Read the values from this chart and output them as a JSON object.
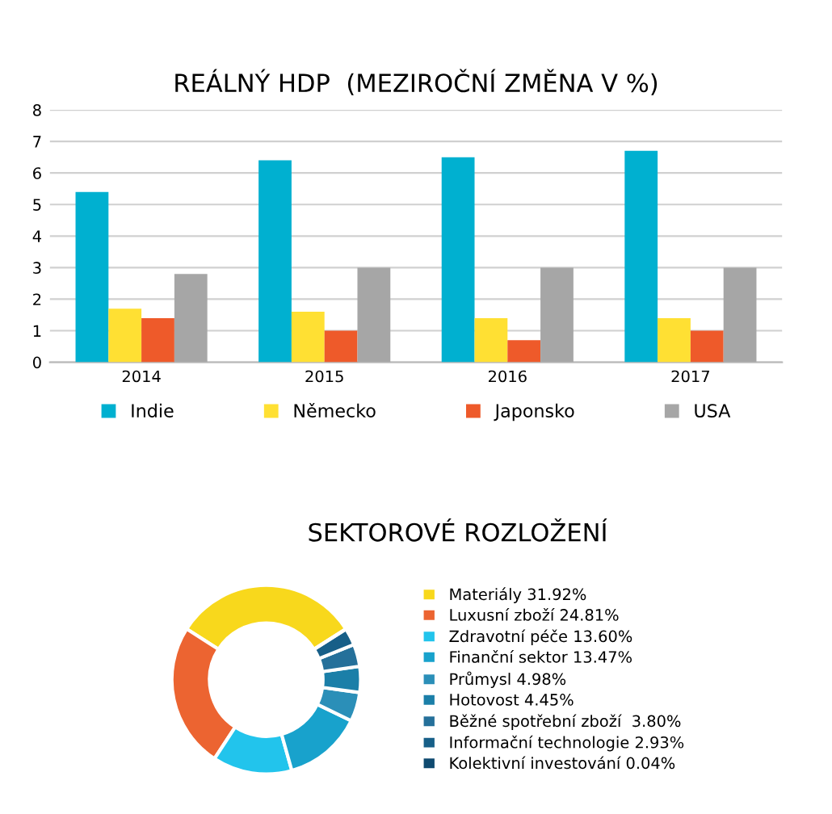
{
  "chart_data": [
    {
      "type": "bar",
      "title": "REÁLNÝ HDP  (MEZIROČNÍ ZMĚNA V %)",
      "categories": [
        "2014",
        "2015",
        "2016",
        "2017"
      ],
      "series": [
        {
          "name": "Indie",
          "color": "#00b0d0",
          "values": [
            5.4,
            6.4,
            6.5,
            6.7
          ]
        },
        {
          "name": "Německo",
          "color": "#ffe033",
          "values": [
            1.7,
            1.6,
            1.4,
            1.4
          ]
        },
        {
          "name": "Japonsko",
          "color": "#ee5a2a",
          "values": [
            1.4,
            1.0,
            0.7,
            1.0
          ]
        },
        {
          "name": "USA",
          "color": "#a6a6a6",
          "values": [
            2.8,
            3.0,
            3.0,
            3.0
          ]
        }
      ],
      "ylim": [
        0,
        8
      ],
      "yticks": [
        0,
        1,
        2,
        3,
        4,
        5,
        6,
        7,
        8
      ],
      "grid": "y",
      "legend": "bottom"
    },
    {
      "type": "donut",
      "title": "SEKTOROVÉ ROZLOŽENÍ",
      "categories": [
        "Materiály",
        "Luxusní zboží",
        "Zdravotní péče",
        "Finanční sektor",
        "Průmysl",
        "Hotovost",
        "Běžné spotřební zboží ",
        "Informační technologie",
        "Kolektivní investování"
      ],
      "values": [
        31.92,
        24.81,
        13.6,
        13.47,
        4.98,
        4.45,
        3.8,
        2.93,
        0.04
      ],
      "value_labels": [
        "31.92%",
        "24.81%",
        "13.60%",
        "13.47%",
        "4.98%",
        "4.45%",
        "3.80%",
        "2.93%",
        "0.04%"
      ],
      "colors": [
        "#f8d81c",
        "#ec6431",
        "#22c4ec",
        "#18a2cc",
        "#2b8fb8",
        "#1b7fa8",
        "#25709a",
        "#175f88",
        "#0f4a70"
      ],
      "legend": "right"
    }
  ]
}
